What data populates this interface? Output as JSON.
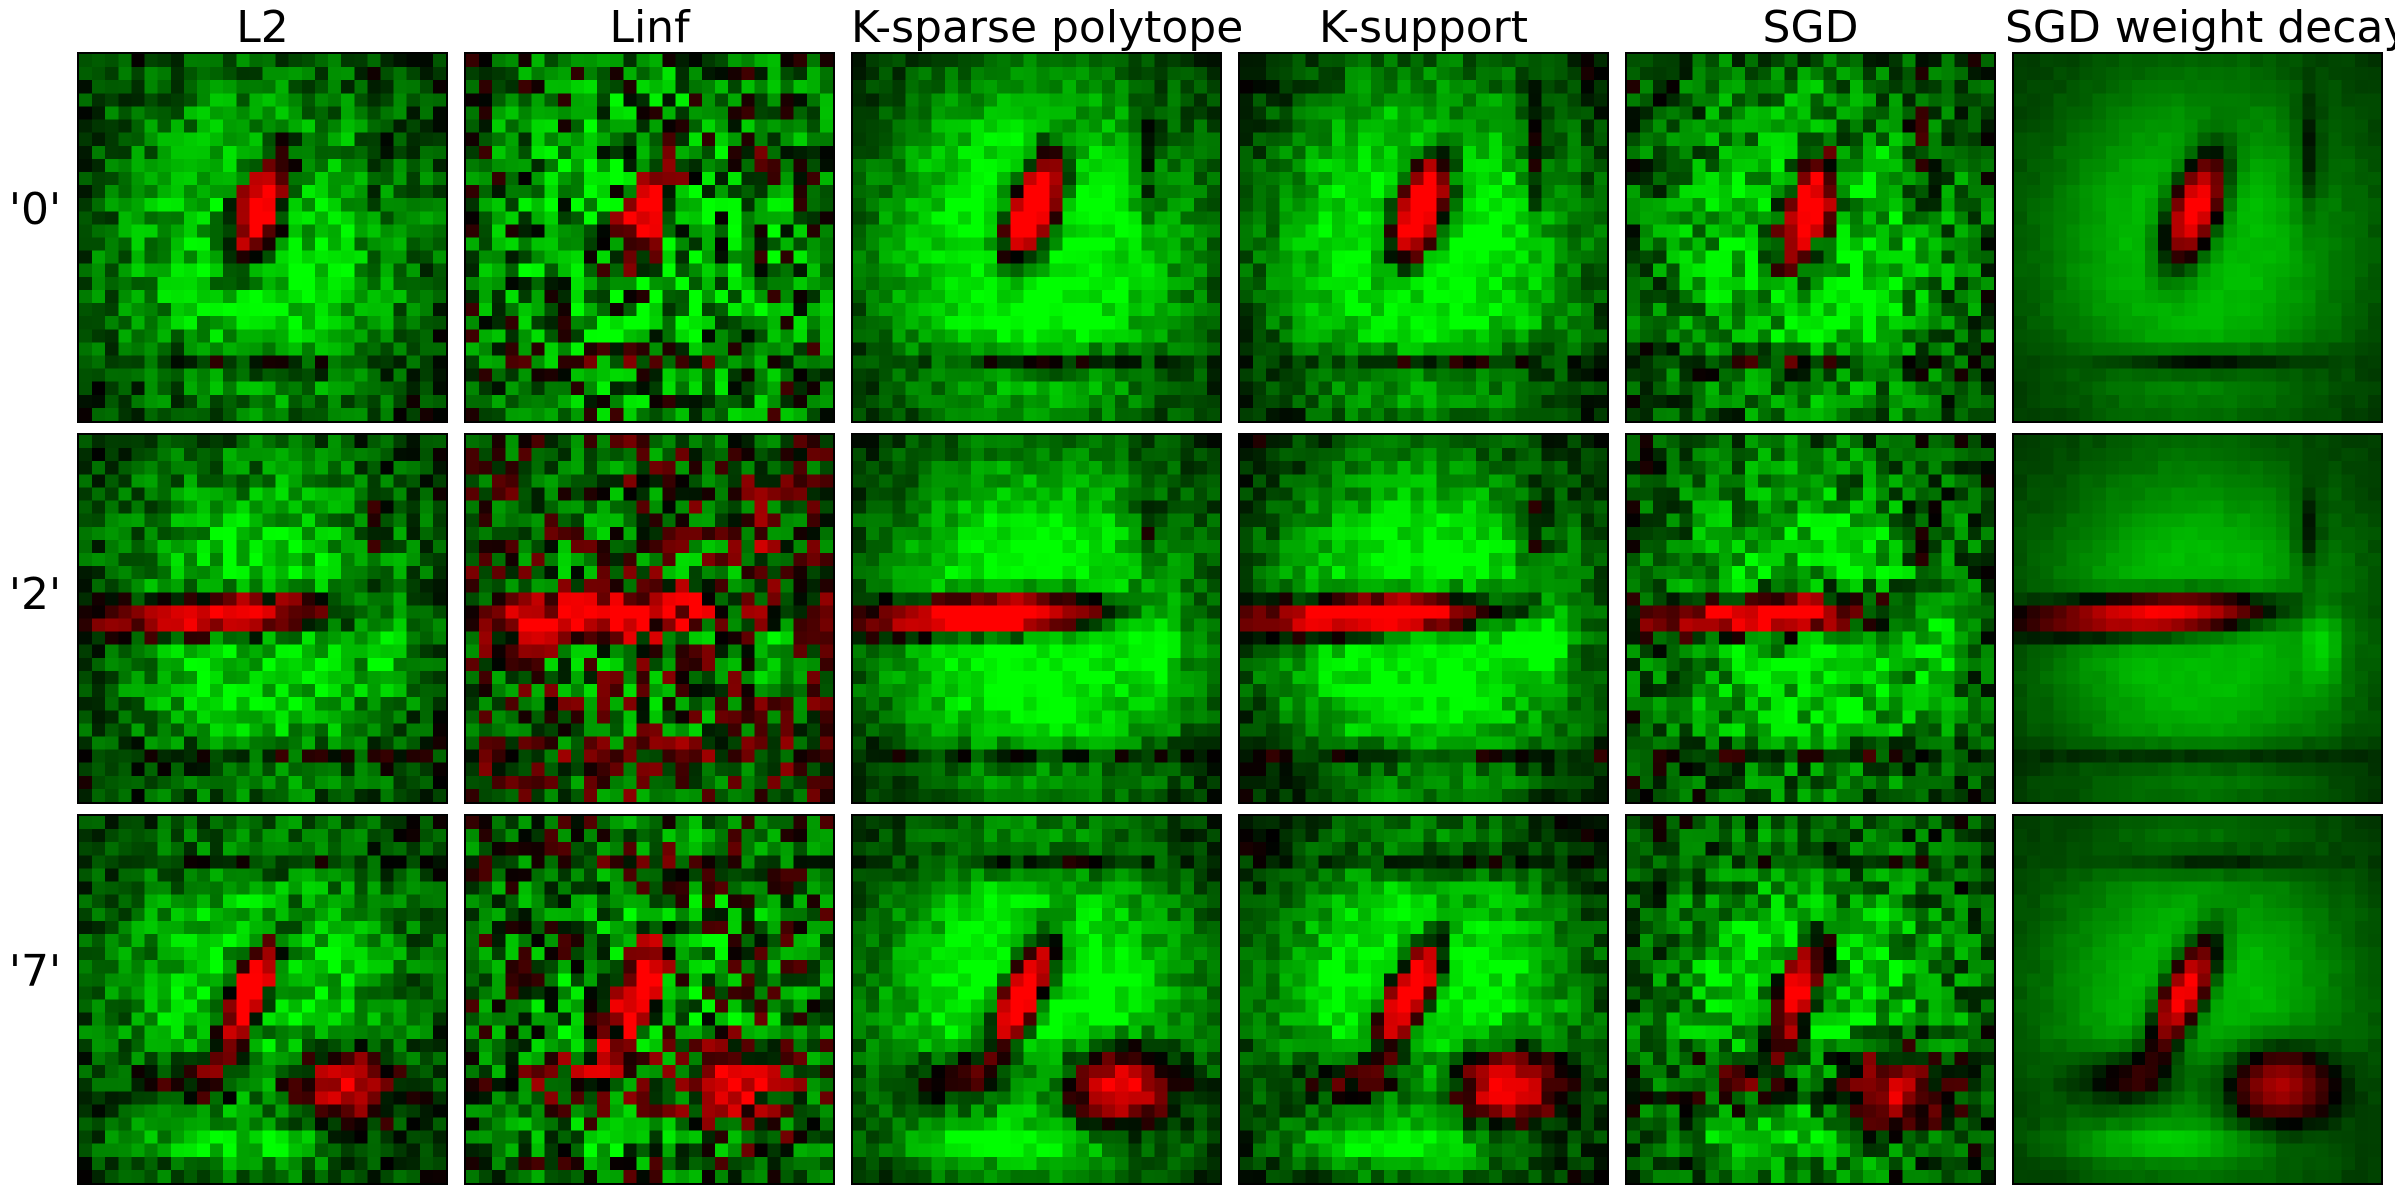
{
  "figure": {
    "columns": [
      {
        "title": "L2"
      },
      {
        "title": "Linf"
      },
      {
        "title": "K-sparse polytope"
      },
      {
        "title": "K-support"
      },
      {
        "title": "SGD"
      },
      {
        "title": "SGD weight decay"
      }
    ],
    "rows": [
      {
        "label": "'0'",
        "digit": "0"
      },
      {
        "label": "'2'",
        "digit": "2"
      },
      {
        "label": "'7'",
        "digit": "7"
      }
    ],
    "colors": {
      "positive": "#00ff00",
      "negative": "#ff0000",
      "zero": "#000000"
    }
  }
}
